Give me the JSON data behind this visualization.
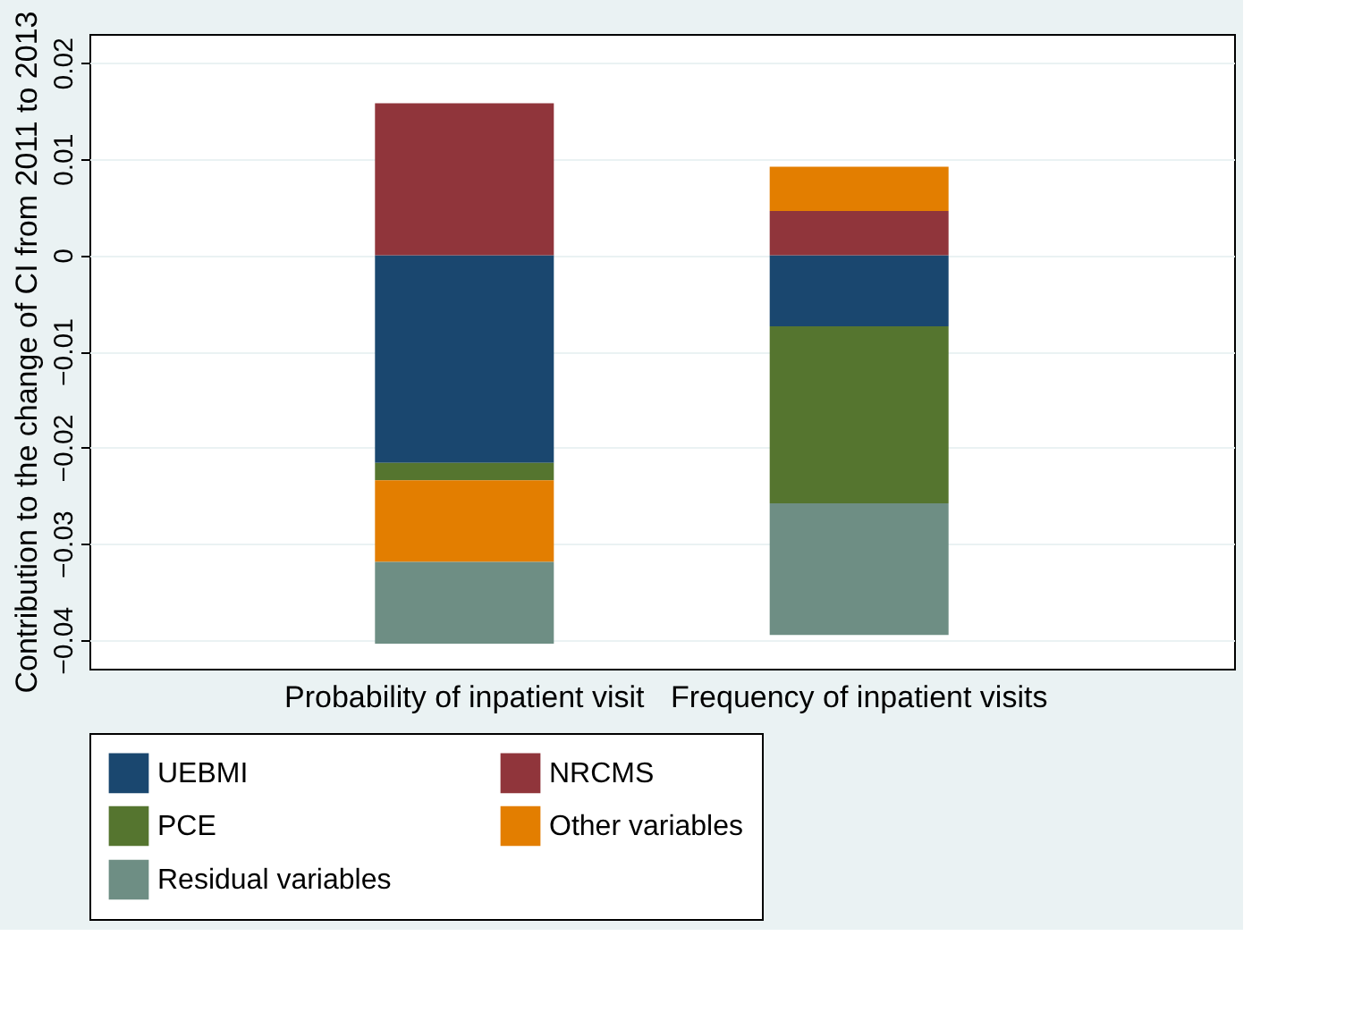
{
  "chart_data": {
    "type": "bar",
    "stacked": true,
    "ylabel": "Contribution to the change of CI from 2011 to 2013",
    "categories": [
      "Probability of inpatient visit",
      "Frequency of inpatient visits"
    ],
    "series": [
      {
        "name": "UEBMI",
        "color": "#1a476f",
        "values": [
          -0.0216,
          -0.0074
        ]
      },
      {
        "name": "NRCMS",
        "color": "#90353b",
        "values": [
          0.0158,
          0.0046
        ]
      },
      {
        "name": "PCE",
        "color": "#55752f",
        "values": [
          -0.0018,
          -0.0184
        ]
      },
      {
        "name": "Other variables",
        "color": "#e37e00",
        "values": [
          -0.0085,
          0.0046
        ]
      },
      {
        "name": "Residual variables",
        "color": "#6e8e84",
        "values": [
          -0.0085,
          -0.0137
        ]
      }
    ],
    "ylim": [
      -0.043,
      0.023
    ],
    "yticks": [
      -0.04,
      -0.03,
      -0.02,
      -0.01,
      0,
      0.01,
      0.02
    ],
    "grid": "y",
    "legend": "bottom"
  }
}
